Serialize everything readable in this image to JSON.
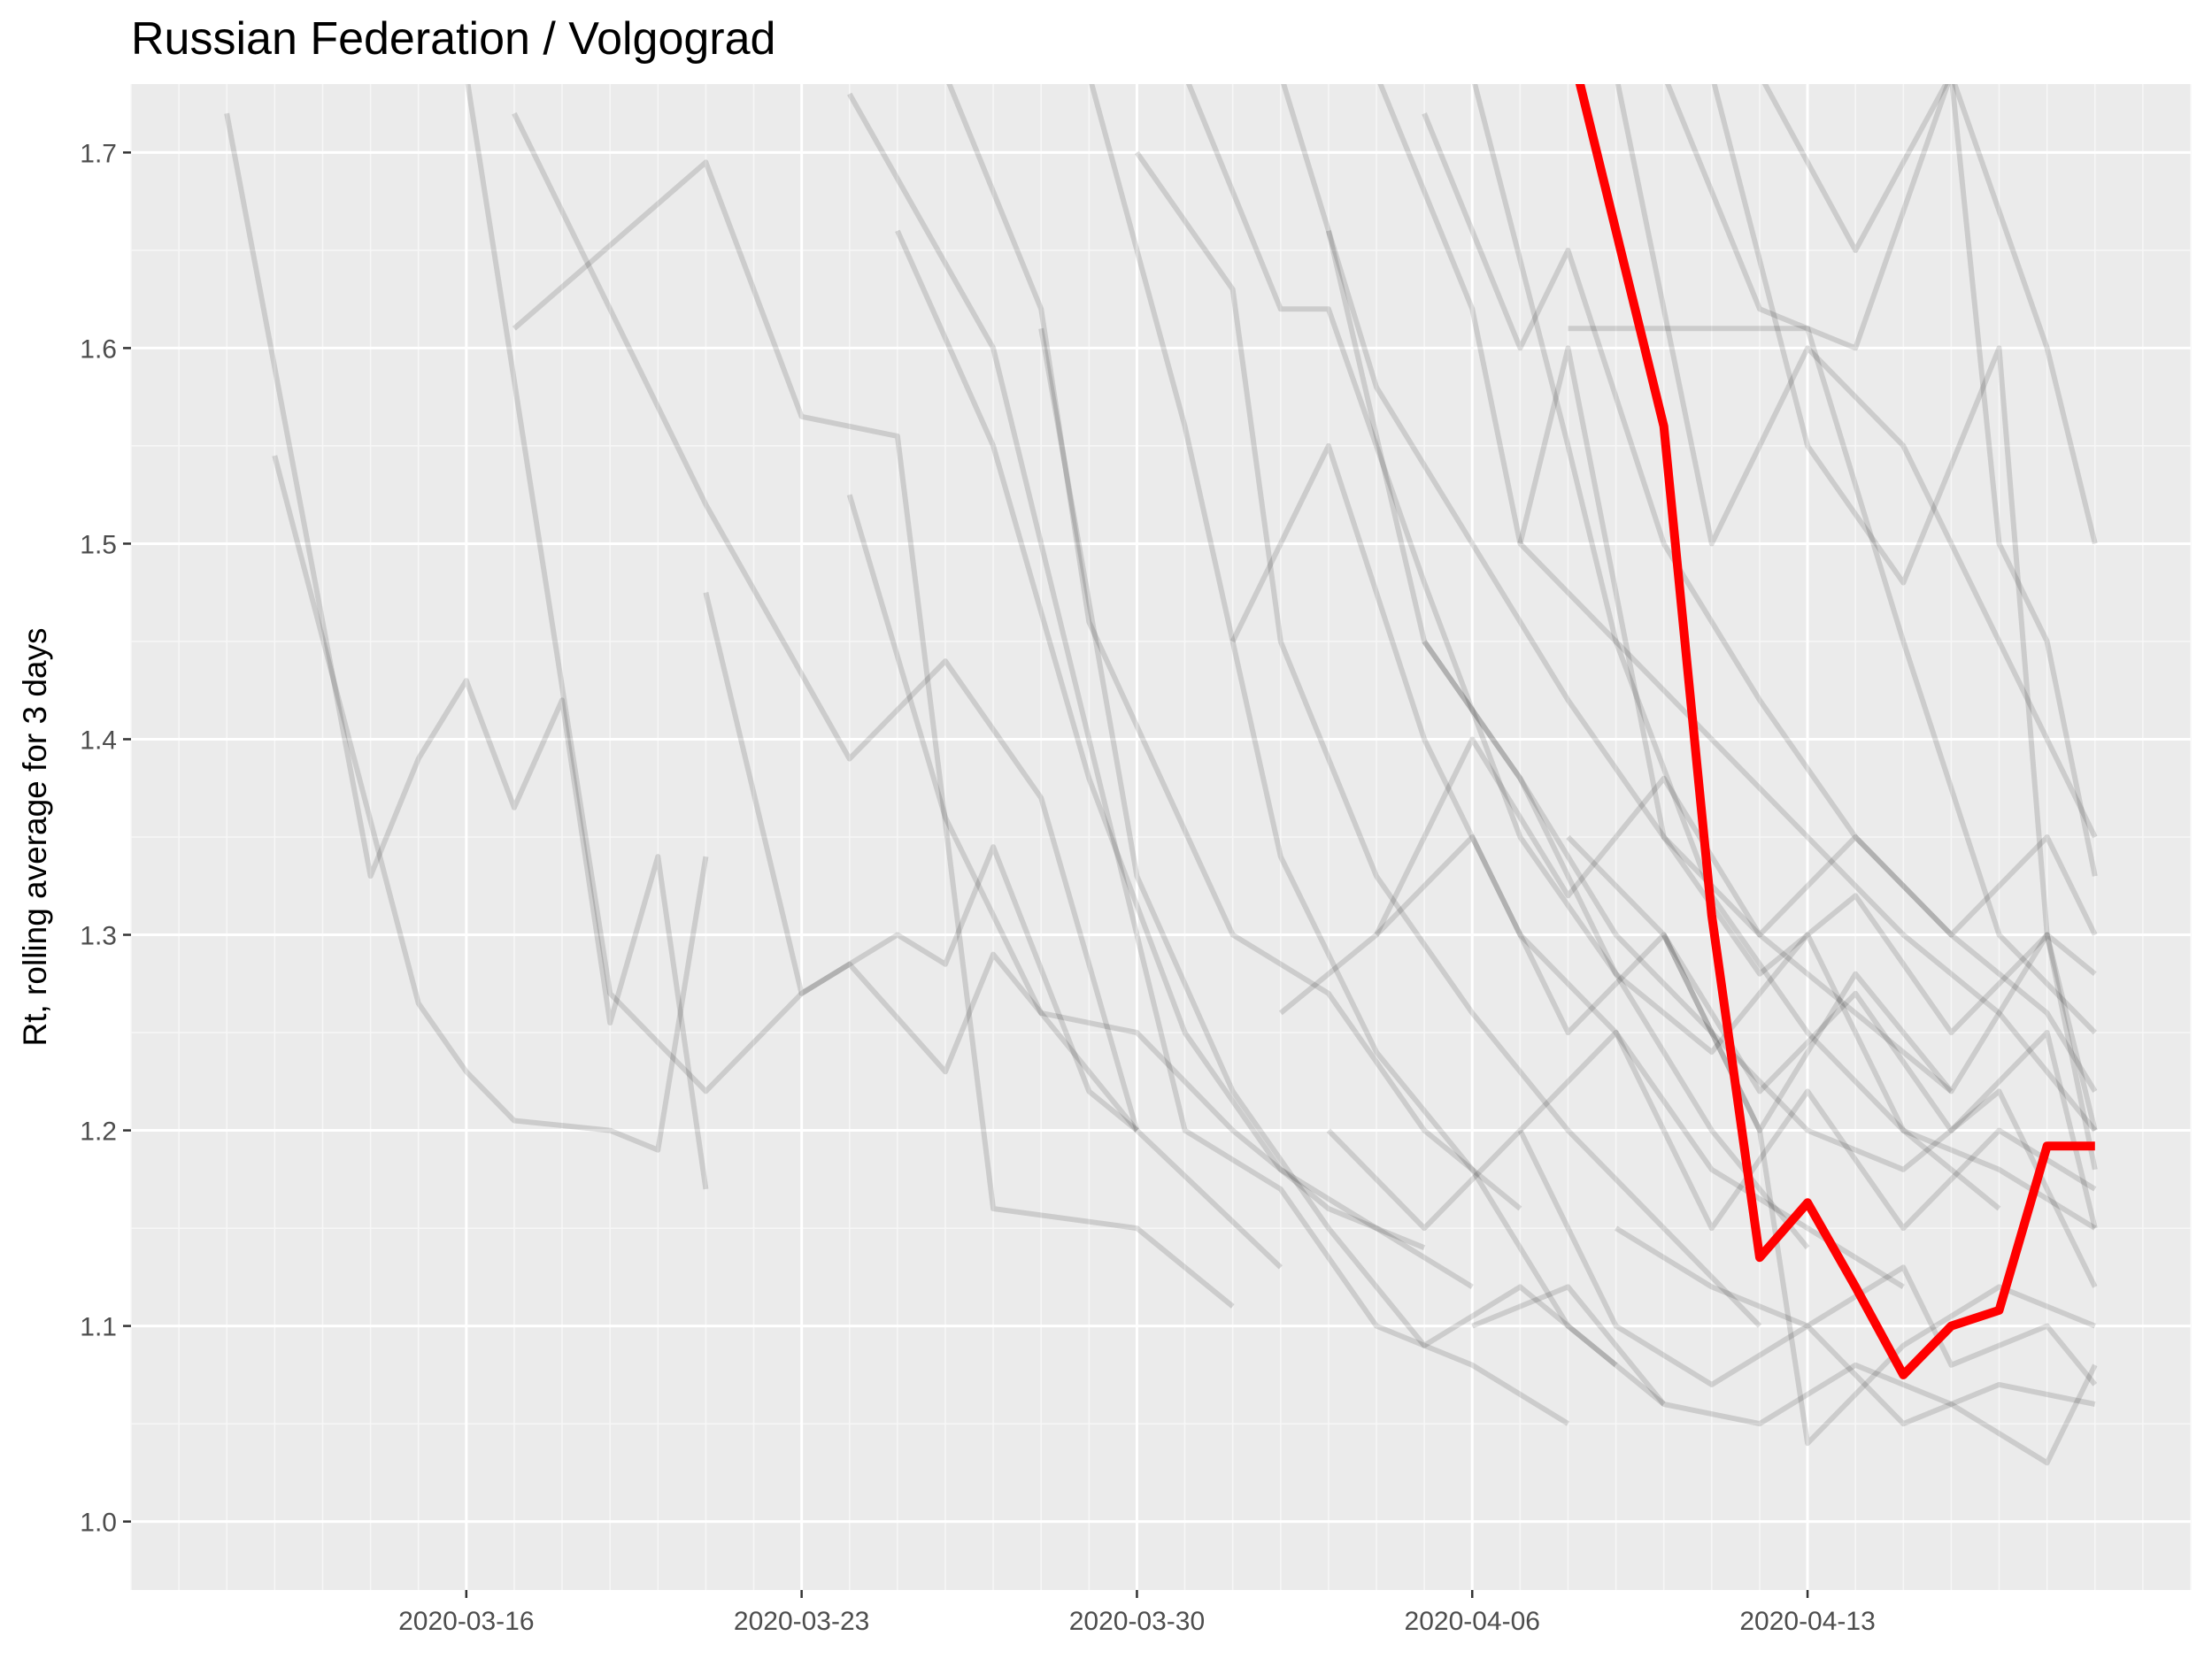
{
  "chart_data": {
    "type": "line",
    "title": "Russian Federation / Volgograd",
    "xlabel": "",
    "ylabel": "Rt, rolling average for 3 days",
    "x_ticks": [
      "2020-03-16",
      "2020-03-23",
      "2020-03-30",
      "2020-04-06",
      "2020-04-13"
    ],
    "y_ticks": [
      "1.0",
      "1.1",
      "1.2",
      "1.3",
      "1.4",
      "1.5",
      "1.6",
      "1.7"
    ],
    "xlim": [
      "2020-03-09",
      "2020-04-21"
    ],
    "ylim": [
      0.965,
      1.735
    ],
    "grid": true,
    "colors": {
      "panel": "#ebebeb",
      "grid": "#ffffff",
      "highlight": "#ff0000",
      "background": "#000000"
    },
    "highlight_series": {
      "name": "Volgograd",
      "x": [
        "2020-04-08",
        "2020-04-09",
        "2020-04-10",
        "2020-04-11",
        "2020-04-12",
        "2020-04-13",
        "2020-04-14",
        "2020-04-15",
        "2020-04-16",
        "2020-04-17",
        "2020-04-18",
        "2020-04-19"
      ],
      "y": [
        1.76,
        1.66,
        1.56,
        1.31,
        1.135,
        1.163,
        1.12,
        1.075,
        1.1,
        1.108,
        1.192,
        1.192
      ]
    },
    "background_series": [
      {
        "x": [
          "2020-03-11",
          "2020-03-14",
          "2020-03-15",
          "2020-03-16",
          "2020-03-17",
          "2020-03-18",
          "2020-03-19",
          "2020-03-20",
          "2020-03-21"
        ],
        "y": [
          1.72,
          1.33,
          1.39,
          1.43,
          1.365,
          1.42,
          1.255,
          1.34,
          1.17
        ]
      },
      {
        "x": [
          "2020-03-12",
          "2020-03-15",
          "2020-03-16",
          "2020-03-17",
          "2020-03-19",
          "2020-03-20",
          "2020-03-21"
        ],
        "y": [
          1.545,
          1.265,
          1.23,
          1.205,
          1.2,
          1.19,
          1.34
        ]
      },
      {
        "x": [
          "2020-03-17",
          "2020-03-21",
          "2020-03-23",
          "2020-03-25",
          "2020-03-27",
          "2020-03-30",
          "2020-04-01"
        ],
        "y": [
          1.61,
          1.695,
          1.565,
          1.555,
          1.16,
          1.15,
          1.11
        ]
      },
      {
        "x": [
          "2020-03-17",
          "2020-03-21",
          "2020-03-24",
          "2020-03-26",
          "2020-03-28",
          "2020-03-30",
          "2020-04-02"
        ],
        "y": [
          1.72,
          1.52,
          1.39,
          1.44,
          1.37,
          1.2,
          1.13
        ]
      },
      {
        "x": [
          "2020-03-16",
          "2020-03-19",
          "2020-03-21",
          "2020-03-23",
          "2020-03-25",
          "2020-03-26",
          "2020-03-27",
          "2020-03-29",
          "2020-03-30"
        ],
        "y": [
          1.74,
          1.27,
          1.22,
          1.27,
          1.3,
          1.285,
          1.345,
          1.22,
          1.2
        ]
      },
      {
        "x": [
          "2020-03-21",
          "2020-03-23",
          "2020-03-24",
          "2020-03-26",
          "2020-03-27",
          "2020-03-28",
          "2020-03-30"
        ],
        "y": [
          1.475,
          1.27,
          1.285,
          1.23,
          1.29,
          1.26,
          1.2
        ]
      },
      {
        "x": [
          "2020-03-24",
          "2020-03-26",
          "2020-03-28",
          "2020-03-30",
          "2020-04-01",
          "2020-04-03",
          "2020-04-05"
        ],
        "y": [
          1.525,
          1.36,
          1.26,
          1.25,
          1.2,
          1.16,
          1.14
        ]
      },
      {
        "x": [
          "2020-03-24",
          "2020-03-27",
          "2020-03-29",
          "2020-03-31",
          "2020-04-02",
          "2020-04-04",
          "2020-04-06",
          "2020-04-08"
        ],
        "y": [
          1.73,
          1.6,
          1.4,
          1.2,
          1.17,
          1.1,
          1.08,
          1.05
        ]
      },
      {
        "x": [
          "2020-03-25",
          "2020-03-27",
          "2020-03-29",
          "2020-03-31",
          "2020-04-02",
          "2020-04-04",
          "2020-04-06"
        ],
        "y": [
          1.66,
          1.55,
          1.38,
          1.25,
          1.18,
          1.15,
          1.12
        ]
      },
      {
        "x": [
          "2020-03-26",
          "2020-03-28",
          "2020-03-29",
          "2020-04-01",
          "2020-04-03",
          "2020-04-05",
          "2020-04-07"
        ],
        "y": [
          1.74,
          1.62,
          1.46,
          1.3,
          1.27,
          1.2,
          1.16
        ]
      },
      {
        "x": [
          "2020-03-28",
          "2020-03-29",
          "2020-03-30",
          "2020-04-01",
          "2020-04-03",
          "2020-04-05",
          "2020-04-07",
          "2020-04-09"
        ],
        "y": [
          1.61,
          1.47,
          1.33,
          1.22,
          1.15,
          1.09,
          1.12,
          1.08
        ]
      },
      {
        "x": [
          "2020-03-29",
          "2020-03-31",
          "2020-04-02",
          "2020-04-04",
          "2020-04-06",
          "2020-04-08",
          "2020-04-10"
        ],
        "y": [
          1.74,
          1.56,
          1.34,
          1.24,
          1.18,
          1.1,
          1.06
        ]
      },
      {
        "x": [
          "2020-03-30",
          "2020-04-01",
          "2020-04-02",
          "2020-04-04",
          "2020-04-06",
          "2020-04-08",
          "2020-04-10",
          "2020-04-12"
        ],
        "y": [
          1.7,
          1.63,
          1.45,
          1.33,
          1.26,
          1.2,
          1.15,
          1.1
        ]
      },
      {
        "x": [
          "2020-03-31",
          "2020-04-02",
          "2020-04-03",
          "2020-04-05",
          "2020-04-07",
          "2020-04-09",
          "2020-04-11",
          "2020-04-13"
        ],
        "y": [
          1.74,
          1.62,
          1.62,
          1.48,
          1.35,
          1.28,
          1.2,
          1.14
        ]
      },
      {
        "x": [
          "2020-04-01",
          "2020-04-03",
          "2020-04-05",
          "2020-04-07",
          "2020-04-09",
          "2020-04-11",
          "2020-04-13",
          "2020-04-15"
        ],
        "y": [
          1.45,
          1.55,
          1.4,
          1.3,
          1.25,
          1.18,
          1.15,
          1.12
        ]
      },
      {
        "x": [
          "2020-04-02",
          "2020-04-04",
          "2020-04-06",
          "2020-04-08",
          "2020-04-10",
          "2020-04-12",
          "2020-04-14",
          "2020-04-16"
        ],
        "y": [
          1.74,
          1.58,
          1.5,
          1.42,
          1.35,
          1.3,
          1.26,
          1.22
        ]
      },
      {
        "x": [
          "2020-04-03",
          "2020-04-05",
          "2020-04-07",
          "2020-04-09",
          "2020-04-11",
          "2020-04-13",
          "2020-04-15",
          "2020-04-17"
        ],
        "y": [
          1.66,
          1.45,
          1.38,
          1.28,
          1.24,
          1.3,
          1.2,
          1.16
        ]
      },
      {
        "x": [
          "2020-04-04",
          "2020-04-06",
          "2020-04-07",
          "2020-04-09",
          "2020-04-11",
          "2020-04-13",
          "2020-04-15",
          "2020-04-17",
          "2020-04-19"
        ],
        "y": [
          1.74,
          1.62,
          1.5,
          1.45,
          1.32,
          1.25,
          1.2,
          1.18,
          1.15
        ]
      },
      {
        "x": [
          "2020-04-05",
          "2020-04-07",
          "2020-04-08",
          "2020-04-10",
          "2020-04-12",
          "2020-04-14",
          "2020-04-16",
          "2020-04-18",
          "2020-04-19"
        ],
        "y": [
          1.72,
          1.6,
          1.65,
          1.5,
          1.42,
          1.35,
          1.3,
          1.26,
          1.22
        ]
      },
      {
        "x": [
          "2020-04-06",
          "2020-04-08",
          "2020-04-09",
          "2020-04-11",
          "2020-04-13",
          "2020-04-15",
          "2020-04-17",
          "2020-04-19"
        ],
        "y": [
          1.74,
          1.55,
          1.45,
          1.4,
          1.35,
          1.3,
          1.26,
          1.2
        ]
      },
      {
        "x": [
          "2020-04-07",
          "2020-04-08",
          "2020-04-10",
          "2020-04-12",
          "2020-04-14",
          "2020-04-16",
          "2020-04-18",
          "2020-04-19"
        ],
        "y": [
          1.5,
          1.6,
          1.35,
          1.28,
          1.32,
          1.25,
          1.3,
          1.18
        ]
      },
      {
        "x": [
          "2020-04-08",
          "2020-04-09",
          "2020-04-11",
          "2020-04-13",
          "2020-04-15",
          "2020-04-17",
          "2020-04-19"
        ],
        "y": [
          1.61,
          1.61,
          1.61,
          1.61,
          1.45,
          1.3,
          1.25
        ]
      },
      {
        "x": [
          "2020-04-08",
          "2020-04-10",
          "2020-04-12",
          "2020-04-14",
          "2020-04-16",
          "2020-04-18",
          "2020-04-19"
        ],
        "y": [
          1.35,
          1.3,
          1.22,
          1.27,
          1.2,
          1.25,
          1.15
        ]
      },
      {
        "x": [
          "2020-04-09",
          "2020-04-11",
          "2020-04-13",
          "2020-04-15",
          "2020-04-17",
          "2020-04-19"
        ],
        "y": [
          1.74,
          1.5,
          1.6,
          1.55,
          1.45,
          1.35
        ]
      },
      {
        "x": [
          "2020-04-10",
          "2020-04-12",
          "2020-04-14",
          "2020-04-16",
          "2020-04-18",
          "2020-04-19"
        ],
        "y": [
          1.74,
          1.62,
          1.6,
          1.74,
          1.6,
          1.5
        ]
      },
      {
        "x": [
          "2020-04-11",
          "2020-04-13",
          "2020-04-15",
          "2020-04-17",
          "2020-04-18",
          "2020-04-19"
        ],
        "y": [
          1.74,
          1.55,
          1.48,
          1.6,
          1.3,
          1.2
        ]
      },
      {
        "x": [
          "2020-04-12",
          "2020-04-14",
          "2020-04-16",
          "2020-04-17",
          "2020-04-18",
          "2020-04-19"
        ],
        "y": [
          1.74,
          1.65,
          1.74,
          1.5,
          1.45,
          1.33
        ]
      },
      {
        "x": [
          "2020-04-09",
          "2020-04-11",
          "2020-04-13",
          "2020-04-15",
          "2020-04-16",
          "2020-04-18",
          "2020-04-19"
        ],
        "y": [
          1.15,
          1.12,
          1.1,
          1.13,
          1.08,
          1.1,
          1.07
        ]
      },
      {
        "x": [
          "2020-04-07",
          "2020-04-09",
          "2020-04-11",
          "2020-04-13",
          "2020-04-15",
          "2020-04-17",
          "2020-04-19"
        ],
        "y": [
          1.2,
          1.1,
          1.07,
          1.1,
          1.05,
          1.07,
          1.06
        ]
      },
      {
        "x": [
          "2020-04-06",
          "2020-04-08",
          "2020-04-10",
          "2020-04-12",
          "2020-04-14",
          "2020-04-16",
          "2020-04-18",
          "2020-04-19"
        ],
        "y": [
          1.1,
          1.12,
          1.06,
          1.05,
          1.08,
          1.06,
          1.03,
          1.08
        ]
      },
      {
        "x": [
          "2020-04-10",
          "2020-04-12",
          "2020-04-13",
          "2020-04-15",
          "2020-04-17",
          "2020-04-19"
        ],
        "y": [
          1.3,
          1.2,
          1.04,
          1.09,
          1.12,
          1.1
        ]
      },
      {
        "x": [
          "2020-04-05",
          "2020-04-07",
          "2020-04-09",
          "2020-04-11",
          "2020-04-13",
          "2020-04-15",
          "2020-04-17",
          "2020-04-19"
        ],
        "y": [
          1.45,
          1.38,
          1.3,
          1.25,
          1.2,
          1.18,
          1.22,
          1.12
        ]
      },
      {
        "x": [
          "2020-04-04",
          "2020-04-06",
          "2020-04-08",
          "2020-04-10",
          "2020-04-12",
          "2020-04-14",
          "2020-04-16",
          "2020-04-18",
          "2020-04-19"
        ],
        "y": [
          1.3,
          1.35,
          1.25,
          1.3,
          1.2,
          1.28,
          1.22,
          1.3,
          1.28
        ]
      },
      {
        "x": [
          "2020-04-03",
          "2020-04-05",
          "2020-04-07",
          "2020-04-09",
          "2020-04-11",
          "2020-04-13",
          "2020-04-15",
          "2020-04-17",
          "2020-04-19"
        ],
        "y": [
          1.2,
          1.15,
          1.2,
          1.25,
          1.15,
          1.22,
          1.15,
          1.2,
          1.17
        ]
      },
      {
        "x": [
          "2020-04-02",
          "2020-04-04",
          "2020-04-06",
          "2020-04-08",
          "2020-04-10",
          "2020-04-12",
          "2020-04-14",
          "2020-04-16",
          "2020-04-18",
          "2020-04-19"
        ],
        "y": [
          1.26,
          1.3,
          1.4,
          1.32,
          1.38,
          1.3,
          1.35,
          1.3,
          1.35,
          1.3
        ]
      }
    ]
  }
}
